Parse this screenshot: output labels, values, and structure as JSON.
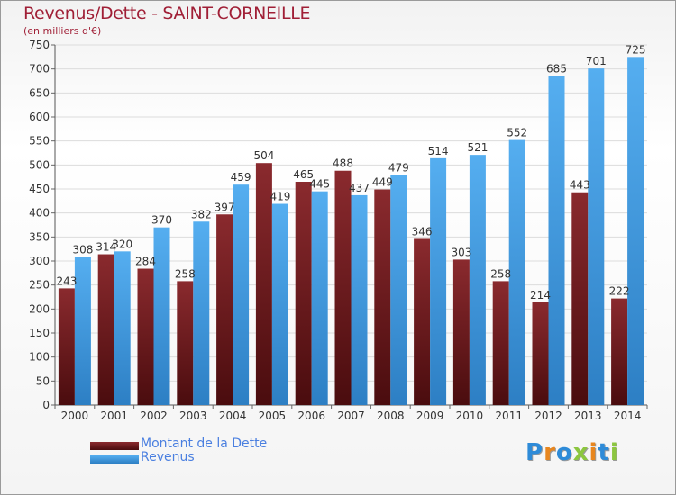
{
  "header": {
    "title": "Revenus/Dette - SAINT-CORNEILLE",
    "subtitle": "(en milliers d'€)"
  },
  "colors": {
    "dette": "#7a1a1e",
    "revenus": "#4aa3e6",
    "title": "#a01f36",
    "legend_text": "#4a7fe0"
  },
  "legend": {
    "dette_label": "Montant de la Dette",
    "revenus_label": "Revenus"
  },
  "logo": {
    "text": "Proxiti",
    "letter_colors": [
      "#2e8bd8",
      "#e8861e",
      "#2e8bd8",
      "#8cc63f",
      "#e8861e",
      "#2e8bd8",
      "#8cc63f"
    ]
  },
  "chart_data": {
    "type": "bar",
    "title": "Revenus/Dette - SAINT-CORNEILLE",
    "subtitle": "(en milliers d'€)",
    "categories": [
      "2000",
      "2001",
      "2002",
      "2003",
      "2004",
      "2005",
      "2006",
      "2007",
      "2008",
      "2009",
      "2010",
      "2011",
      "2012",
      "2013",
      "2014"
    ],
    "series": [
      {
        "name": "Montant de la Dette",
        "values": [
          243,
          314,
          284,
          258,
          397,
          504,
          465,
          488,
          449,
          346,
          303,
          258,
          214,
          443,
          222
        ]
      },
      {
        "name": "Revenus",
        "values": [
          308,
          320,
          370,
          382,
          459,
          419,
          445,
          437,
          479,
          514,
          521,
          552,
          685,
          701,
          725
        ]
      }
    ],
    "ylim": [
      0,
      750
    ],
    "yticks": [
      0,
      50,
      100,
      150,
      200,
      250,
      300,
      350,
      400,
      450,
      500,
      550,
      600,
      650,
      700,
      750
    ],
    "grid": true,
    "legend_position": "bottom-left"
  }
}
